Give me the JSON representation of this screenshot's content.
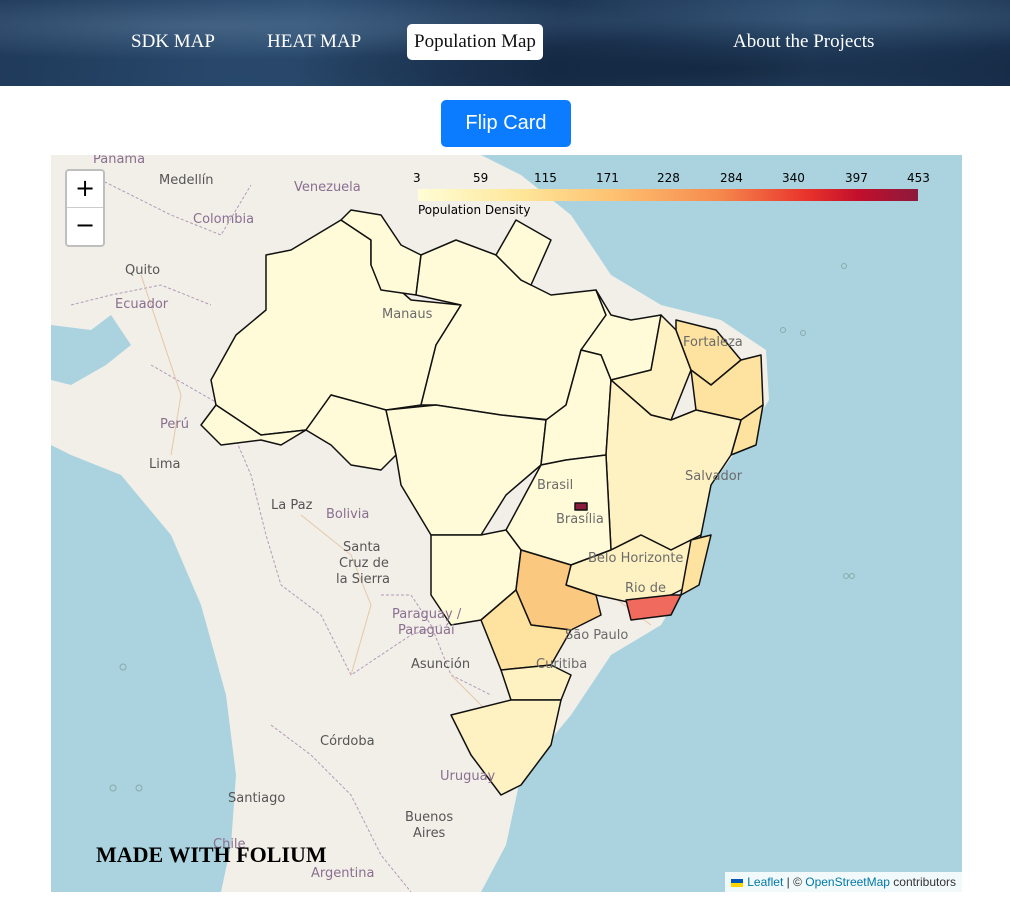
{
  "nav": {
    "items": [
      {
        "label": "SDK MAP"
      },
      {
        "label": "HEAT MAP"
      },
      {
        "label": "Population Map"
      },
      {
        "label": "About the Projects"
      }
    ]
  },
  "flip_button": {
    "label": "Flip Card"
  },
  "map": {
    "zoom_in": "+",
    "zoom_out": "−",
    "legend": {
      "ticks": [
        "3",
        "59",
        "115",
        "171",
        "228",
        "284",
        "340",
        "397",
        "453"
      ],
      "caption": "Population Density",
      "min": 3,
      "max": 453
    },
    "labels": {
      "panama": "Panama",
      "medellin": "Medellín",
      "venezuela": "Venezuela",
      "colombia": "Colombia",
      "quito": "Quito",
      "ecuador": "Ecuador",
      "manaus": "Manaus",
      "fortaleza": "Fortaleza",
      "peru": "Perú",
      "lima": "Lima",
      "salvador": "Salvador",
      "brasil": "Brasil",
      "brasilia": "Brasília",
      "la_paz": "La Paz",
      "bolivia": "Bolivia",
      "santa": "Santa",
      "cruz_de": "Cruz de",
      "la_sierra": "la Sierra",
      "belo_horizonte": "Belo Horizonte",
      "rio_de": "Rio de",
      "paraguay": "Paraguay /",
      "paraguai": "Paraguái",
      "sao_paulo": "São Paulo",
      "asuncion": "Asunción",
      "curitiba": "Curitiba",
      "cordoba": "Córdoba",
      "uruguay": "Uruguay",
      "santiago": "Santiago",
      "buenos": "Buenos",
      "aires": "Aires",
      "chile": "Chile",
      "argentina": "Argentina"
    },
    "watermark": "MADE WITH FOLIUM",
    "attribution": {
      "leaflet": "Leaflet",
      "separator": " | © ",
      "osm": "OpenStreetMap",
      "suffix": " contributors"
    },
    "colors": {
      "ocean": "#aad3df",
      "land": "#f2efe9",
      "very_low": "#fffbd8",
      "low": "#fff2c2",
      "medium_low": "#fee3a0",
      "medium": "#fbc87f",
      "high": "#f06a5e",
      "very_high": "#8a1d3d"
    }
  }
}
